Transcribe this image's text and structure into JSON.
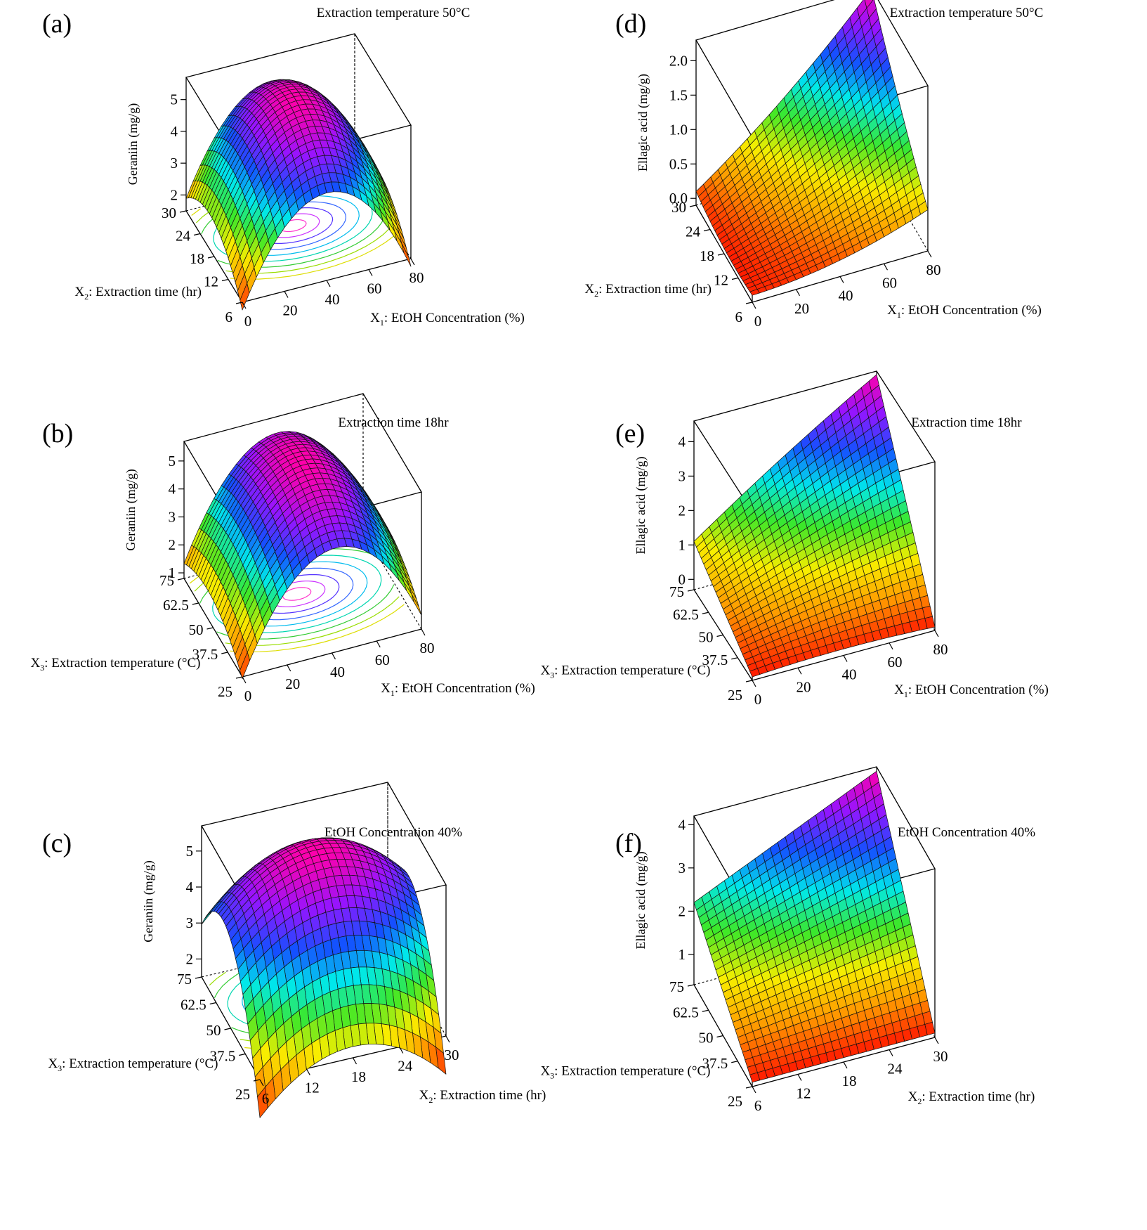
{
  "charts": [
    {
      "panel": "(a)",
      "condition": "Extraction temperature  50°C",
      "zlabel": "Geraniin (mg/g)",
      "xlabel": {
        "var": "X",
        "sub": "1",
        "rest": ": EtOH Concentration (%)"
      },
      "ylabel": {
        "var": "X",
        "sub": "2",
        "rest": ": Extraction time (hr)"
      },
      "xticks": [
        "0",
        "20",
        "40",
        "60",
        "80"
      ],
      "yticks": [
        "6",
        "12",
        "18",
        "24",
        "30"
      ],
      "zticks": [
        "2",
        "3",
        "4",
        "5"
      ]
    },
    {
      "panel": "(b)",
      "condition": "Extraction time 18hr",
      "zlabel": "Geraniin (mg/g)",
      "xlabel": {
        "var": "X",
        "sub": "1",
        "rest": ": EtOH Concentration (%)"
      },
      "ylabel": {
        "var": "X",
        "sub": "3",
        "rest": ": Extraction temperature (°C)"
      },
      "xticks": [
        "0",
        "20",
        "40",
        "60",
        "80"
      ],
      "yticks": [
        "25",
        "37.5",
        "50",
        "62.5",
        "75"
      ],
      "zticks": [
        "1",
        "2",
        "3",
        "4",
        "5"
      ]
    },
    {
      "panel": "(c)",
      "condition": "EtOH Concentration 40%",
      "zlabel": "Geraniin (mg/g)",
      "xlabel": {
        "var": "X",
        "sub": "2",
        "rest": ": Extraction time (hr)"
      },
      "ylabel": {
        "var": "X",
        "sub": "3",
        "rest": ": Extraction temperature (°C)"
      },
      "xticks": [
        "6",
        "12",
        "18",
        "24",
        "30"
      ],
      "yticks": [
        "25",
        "37.5",
        "50",
        "62.5",
        "75"
      ],
      "zticks": [
        "2",
        "3",
        "4",
        "5"
      ]
    },
    {
      "panel": "(d)",
      "condition": "Extraction temperature  50°C",
      "zlabel": "Ellagic acid (mg/g)",
      "xlabel": {
        "var": "X",
        "sub": "1",
        "rest": ": EtOH Concentration (%)"
      },
      "ylabel": {
        "var": "X",
        "sub": "2",
        "rest": ": Extraction time (hr)"
      },
      "xticks": [
        "0",
        "20",
        "40",
        "60",
        "80"
      ],
      "yticks": [
        "6",
        "12",
        "18",
        "24",
        "30"
      ],
      "zticks": [
        "0.0",
        "0.5",
        "1.0",
        "1.5",
        "2.0"
      ]
    },
    {
      "panel": "(e)",
      "condition": "Extraction time 18hr",
      "zlabel": "Ellagic acid (mg/g)",
      "xlabel": {
        "var": "X",
        "sub": "1",
        "rest": ": EtOH Concentration (%)"
      },
      "ylabel": {
        "var": "X",
        "sub": "3",
        "rest": ": Extraction temperature (°C)"
      },
      "xticks": [
        "0",
        "20",
        "40",
        "60",
        "80"
      ],
      "yticks": [
        "25",
        "37.5",
        "50",
        "62.5",
        "75"
      ],
      "zticks": [
        "0",
        "1",
        "2",
        "3",
        "4"
      ]
    },
    {
      "panel": "(f)",
      "condition": "EtOH Concentration 40%",
      "zlabel": "Ellagic acid (mg/g)",
      "xlabel": {
        "var": "X",
        "sub": "2",
        "rest": ": Extraction time (hr)"
      },
      "ylabel": {
        "var": "X",
        "sub": "3",
        "rest": ": Extraction temperature (°C)"
      },
      "xticks": [
        "6",
        "12",
        "18",
        "24",
        "30"
      ],
      "yticks": [
        "25",
        "37.5",
        "50",
        "62.5",
        "75"
      ],
      "zticks": [
        "1",
        "2",
        "3",
        "4"
      ]
    }
  ],
  "chart_data": [
    {
      "type": "surface3d",
      "title": "Extraction temperature  50°C",
      "xlabel": "X1: EtOH Concentration (%)",
      "ylabel": "X2: Extraction time (hr)",
      "zlabel": "Geraniin (mg/g)",
      "xlim": [
        0,
        80
      ],
      "ylim": [
        6,
        30
      ],
      "zlim": [
        1.5,
        5.7
      ],
      "shape": "paraboloid",
      "peak": {
        "x": 40,
        "y": 20,
        "z": 5.6
      },
      "min_value": 1.6,
      "contours_on_floor": true
    },
    {
      "type": "surface3d",
      "title": "Extraction time 18hr",
      "xlabel": "X1: EtOH Concentration (%)",
      "ylabel": "X3: Extraction temperature (°C)",
      "zlabel": "Geraniin (mg/g)",
      "xlim": [
        0,
        80
      ],
      "ylim": [
        25,
        75
      ],
      "zlim": [
        0.8,
        5.7
      ],
      "shape": "paraboloid",
      "peak": {
        "x": 42,
        "y": 55,
        "z": 5.6
      },
      "min_value": 0.9,
      "contours_on_floor": true
    },
    {
      "type": "surface3d",
      "title": "EtOH Concentration 40%",
      "xlabel": "X2: Extraction time (hr)",
      "ylabel": "X3: Extraction temperature (°C)",
      "zlabel": "Geraniin (mg/g)",
      "xlim": [
        6,
        30
      ],
      "ylim": [
        25,
        75
      ],
      "zlim": [
        1.5,
        5.7
      ],
      "shape": "paraboloid",
      "peak": {
        "x": 18,
        "y": 57,
        "z": 5.5
      },
      "min_value": 1.7,
      "contours_on_floor": true
    },
    {
      "type": "surface3d",
      "title": "Extraction temperature  50°C",
      "xlabel": "X1: EtOH Concentration (%)",
      "ylabel": "X2: Extraction time (hr)",
      "zlabel": "Ellagic acid (mg/g)",
      "xlim": [
        0,
        80
      ],
      "ylim": [
        6,
        30
      ],
      "zlim": [
        -0.1,
        2.3
      ],
      "shape": "ridge",
      "corners": {
        "x0_y0": 0.0,
        "x80_y0": 0.5,
        "x0_y30": 0.1,
        "x80_y30": 2.3
      },
      "contours_on_floor": true
    },
    {
      "type": "surface3d",
      "title": "Extraction time 18hr",
      "xlabel": "X1: EtOH Concentration (%)",
      "ylabel": "X3: Extraction temperature (°C)",
      "zlabel": "Ellagic acid (mg/g)",
      "xlim": [
        0,
        80
      ],
      "ylim": [
        25,
        75
      ],
      "zlim": [
        -0.3,
        4.6
      ],
      "shape": "saddle",
      "corners": {
        "x0_y25": -0.2,
        "x80_y25": -0.2,
        "x0_y75": 1.1,
        "x80_y75": 4.5
      },
      "contours_on_floor": true
    },
    {
      "type": "surface3d",
      "title": "EtOH Concentration 40%",
      "xlabel": "X2: Extraction time (hr)",
      "ylabel": "X3: Extraction temperature (°C)",
      "zlabel": "Ellagic acid (mg/g)",
      "xlim": [
        6,
        30
      ],
      "ylim": [
        25,
        75
      ],
      "zlim": [
        0.3,
        4.2
      ],
      "shape": "plane",
      "corners": {
        "x6_y25": 0.4,
        "x30_y25": 0.4,
        "x6_y75": 2.2,
        "x30_y75": 4.1
      },
      "contours_on_floor": true
    }
  ]
}
